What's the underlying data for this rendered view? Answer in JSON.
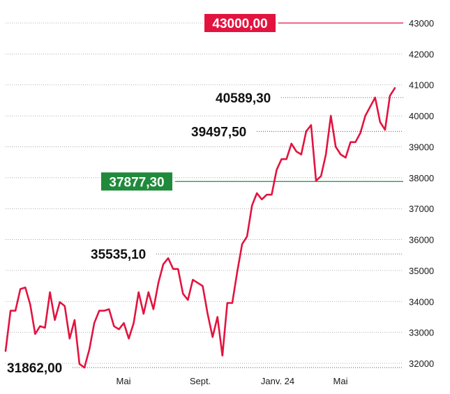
{
  "chart_data": {
    "type": "line",
    "x_ticks": [
      "Mai",
      "Sept.",
      "Janv. 24",
      "Mai"
    ],
    "y_ticks": [
      32000,
      33000,
      34000,
      35000,
      36000,
      37000,
      38000,
      39000,
      40000,
      41000,
      42000,
      43000
    ],
    "ylim": [
      31850,
      43250
    ],
    "series": [
      {
        "color": "#e3133f",
        "values": [
          32400,
          33700,
          33700,
          34400,
          34450,
          33900,
          32950,
          33200,
          33150,
          34300,
          33400,
          33980,
          33850,
          32800,
          33400,
          31980,
          31862,
          32450,
          33300,
          33700,
          33700,
          33750,
          33200,
          33100,
          33300,
          32800,
          33300,
          34300,
          33600,
          34300,
          33750,
          34600,
          35200,
          35400,
          35050,
          35050,
          34250,
          34050,
          34700,
          34600,
          34500,
          33600,
          32850,
          33500,
          32250,
          33950,
          33950,
          34950,
          35850,
          36100,
          37100,
          37500,
          37300,
          37450,
          37450,
          38250,
          38600,
          38600,
          39100,
          38850,
          38750,
          39500,
          39700,
          37900,
          38050,
          38750,
          40000,
          39000,
          38750,
          38650,
          39150,
          39150,
          39450,
          40000,
          40300,
          40589.3,
          39800,
          39550,
          40650,
          40900
        ]
      }
    ],
    "reference_lines": [
      {
        "value": 43000,
        "label": "43000,00",
        "color": "#e3133f",
        "style": "solid"
      },
      {
        "value": 40589.3,
        "label": "40589,30",
        "color": "#808080",
        "style": "dotted"
      },
      {
        "value": 39497.5,
        "label": "39497,50",
        "color": "#808080",
        "style": "dotted"
      },
      {
        "value": 37877.3,
        "label": "37877,30",
        "color": "#1f8a3a",
        "style": "solid"
      },
      {
        "value": 35535.1,
        "label": "35535,10",
        "color": "#808080",
        "style": "dotted"
      },
      {
        "value": 31862,
        "label": "31862,00",
        "color": "#808080",
        "style": "dotted"
      }
    ]
  }
}
